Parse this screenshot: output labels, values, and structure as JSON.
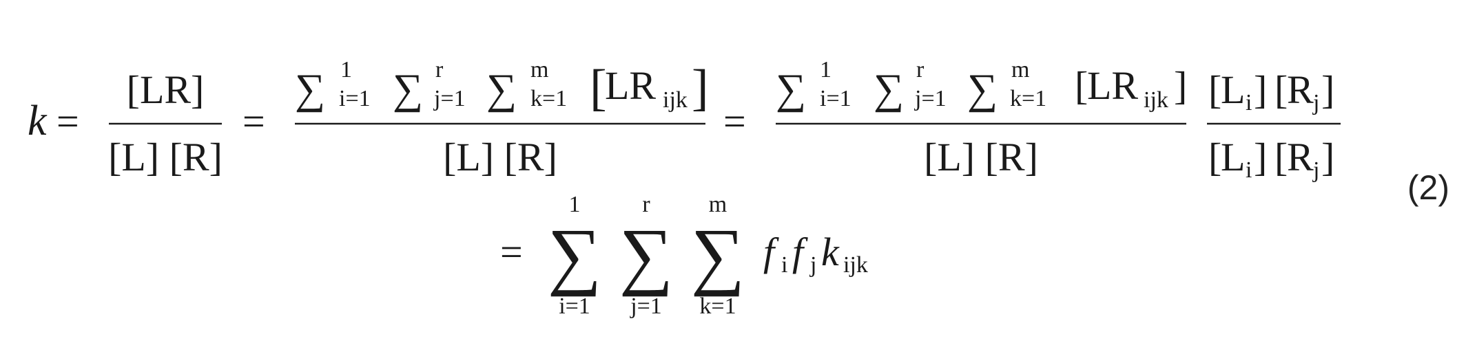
{
  "equation": {
    "lhs": "k",
    "eq": "=",
    "frac1": {
      "num": "[LR]",
      "den": "[L] [R]"
    },
    "sum_upper": [
      "1",
      "r",
      "m"
    ],
    "sum_lower": [
      "i=1",
      "j=1",
      "k=1"
    ],
    "lr_ijk_base": "LR",
    "ijk": "ijk",
    "den_common": "[L] [R]",
    "frac4": {
      "num_base": [
        "L",
        "R"
      ],
      "num_sub": [
        "i",
        "j"
      ]
    },
    "line2_terms": {
      "f": "f",
      "k": "k",
      "sub_i": "i",
      "sub_j": "j",
      "sub_ijk": "ijk"
    }
  },
  "equation_number": "(2)"
}
